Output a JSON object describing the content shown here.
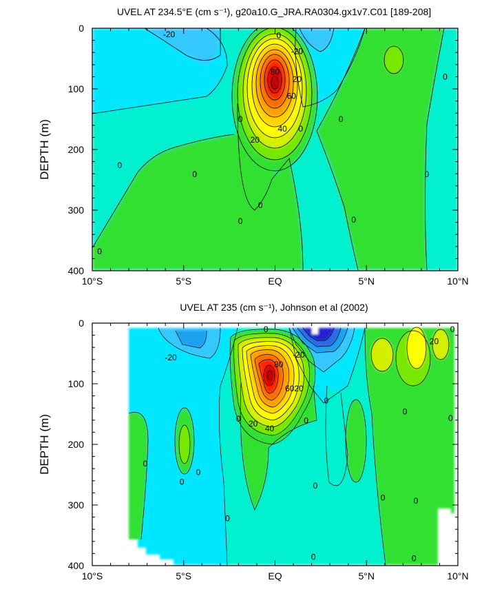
{
  "chart_data": [
    {
      "type": "contour",
      "title": "UVEL AT 234.5°E (cm s⁻¹), g20a10.G_JRA.RA0304.gx1v7.C01 [189-208]",
      "xlabel": "",
      "ylabel": "DEPTH (m)",
      "xlim": [
        -10,
        10
      ],
      "ylim": [
        400,
        0
      ],
      "x_ticks": [
        -10,
        -5,
        0,
        5,
        10
      ],
      "x_tick_labels": [
        "10°S",
        "5°S",
        "EQ",
        "5°N",
        "10°N"
      ],
      "y_ticks": [
        0,
        100,
        200,
        300,
        400
      ],
      "y_tick_labels": [
        "0",
        "100",
        "200",
        "300",
        "400"
      ],
      "contour_interval": 10,
      "colors": {
        "-50": "#2020d0",
        "-40": "#2a6ae8",
        "-30": "#1ea0f0",
        "-20": "#34c8ff",
        "-10": "#00e6ff",
        "0": "#00f0d0",
        "10": "#30e030",
        "20": "#78e800",
        "30": "#d4f000",
        "40": "#ffff00",
        "50": "#ffd400",
        "60": "#ffa000",
        "70": "#ff6e00",
        "80": "#ff2800",
        "90": "#e60000",
        "100": "#c00000"
      },
      "features": [
        {
          "kind": "eastward-core",
          "x": 0,
          "depth": 100,
          "max": 100
        },
        {
          "kind": "westward-surface",
          "x": -3,
          "depth": 0,
          "min": -20
        },
        {
          "kind": "westward-surface",
          "x": 2.5,
          "depth": 0,
          "min": -20
        },
        {
          "kind": "eastward-patch",
          "x": 6.3,
          "depth": 50,
          "max": 20
        }
      ],
      "contour_labels": [
        {
          "text": "-20",
          "x": -5.8,
          "depth": 10
        },
        {
          "text": "0",
          "x": 0.2,
          "depth": 12
        },
        {
          "text": "-20",
          "x": 1.2,
          "depth": 38
        },
        {
          "text": "80",
          "x": 0,
          "depth": 72
        },
        {
          "text": "20",
          "x": 1.2,
          "depth": 84
        },
        {
          "text": "60",
          "x": 0.9,
          "depth": 112
        },
        {
          "text": "0",
          "x": 9.3,
          "depth": 80
        },
        {
          "text": "0",
          "x": -1.9,
          "depth": 150
        },
        {
          "text": "0",
          "x": 1.4,
          "depth": 166
        },
        {
          "text": "40",
          "x": 0.4,
          "depth": 166
        },
        {
          "text": "0",
          "x": 3.6,
          "depth": 150
        },
        {
          "text": "20",
          "x": -1.1,
          "depth": 184
        },
        {
          "text": "0",
          "x": -8.5,
          "depth": 226
        },
        {
          "text": "0",
          "x": -4.4,
          "depth": 241
        },
        {
          "text": "0",
          "x": 8.3,
          "depth": 241
        },
        {
          "text": "0",
          "x": -0.8,
          "depth": 292
        },
        {
          "text": "0",
          "x": -1.9,
          "depth": 318
        },
        {
          "text": "0",
          "x": 4.3,
          "depth": 316
        },
        {
          "text": "0",
          "x": -9.6,
          "depth": 368
        }
      ]
    },
    {
      "type": "contour",
      "title": "UVEL AT 235 (cm s⁻¹), Johnson et al (2002)",
      "xlabel": "",
      "ylabel": "DEPTH (m)",
      "xlim": [
        -10,
        10
      ],
      "ylim": [
        400,
        0
      ],
      "x_ticks": [
        -10,
        -5,
        0,
        5,
        10
      ],
      "x_tick_labels": [
        "10°S",
        "5°S",
        "EQ",
        "5°N",
        "10°N"
      ],
      "y_ticks": [
        0,
        100,
        200,
        300,
        400
      ],
      "y_tick_labels": [
        "0",
        "100",
        "200",
        "300",
        "400"
      ],
      "contour_interval": 10,
      "data_coverage": {
        "x": [
          -8,
          9.8
        ],
        "depth": [
          0,
          400
        ]
      },
      "features": [
        {
          "kind": "eastward-core",
          "x": -0.3,
          "depth": 85,
          "max": 100
        },
        {
          "kind": "westward-surface",
          "x": 2.5,
          "depth": 10,
          "min": -60
        },
        {
          "kind": "westward-surface",
          "x": -4.2,
          "depth": 20,
          "min": -20
        },
        {
          "kind": "eastward-patch",
          "x": 6.3,
          "depth": 60,
          "max": 30
        },
        {
          "kind": "eastward-patch",
          "x": 8.8,
          "depth": 40,
          "max": 30
        }
      ],
      "contour_labels": [
        {
          "text": "0",
          "x": -0.5,
          "depth": 10
        },
        {
          "text": "-20",
          "x": -5.7,
          "depth": 57
        },
        {
          "text": "-20",
          "x": 1.3,
          "depth": 52
        },
        {
          "text": "80",
          "x": 0.2,
          "depth": 68
        },
        {
          "text": "20",
          "x": 8.7,
          "depth": 30
        },
        {
          "text": "0",
          "x": 9.7,
          "depth": 10
        },
        {
          "text": "20",
          "x": 1.3,
          "depth": 108
        },
        {
          "text": "60",
          "x": 0.8,
          "depth": 108
        },
        {
          "text": "0",
          "x": 2.8,
          "depth": 128
        },
        {
          "text": "0",
          "x": 7.1,
          "depth": 146
        },
        {
          "text": "0",
          "x": 9.6,
          "depth": 157
        },
        {
          "text": "0",
          "x": -2,
          "depth": 158
        },
        {
          "text": "0",
          "x": 1.7,
          "depth": 161
        },
        {
          "text": "20",
          "x": -1.2,
          "depth": 166
        },
        {
          "text": "40",
          "x": -0.3,
          "depth": 174
        },
        {
          "text": "0",
          "x": -7.1,
          "depth": 232
        },
        {
          "text": "0",
          "x": -5.1,
          "depth": 262
        },
        {
          "text": "0",
          "x": -4.2,
          "depth": 246
        },
        {
          "text": "0",
          "x": 2.2,
          "depth": 268
        },
        {
          "text": "0",
          "x": 5.9,
          "depth": 288
        },
        {
          "text": "0",
          "x": 7.7,
          "depth": 293
        },
        {
          "text": "0",
          "x": -2.6,
          "depth": 322
        },
        {
          "text": "0",
          "x": 2.1,
          "depth": 386
        },
        {
          "text": "0",
          "x": 7.6,
          "depth": 388
        }
      ]
    }
  ]
}
